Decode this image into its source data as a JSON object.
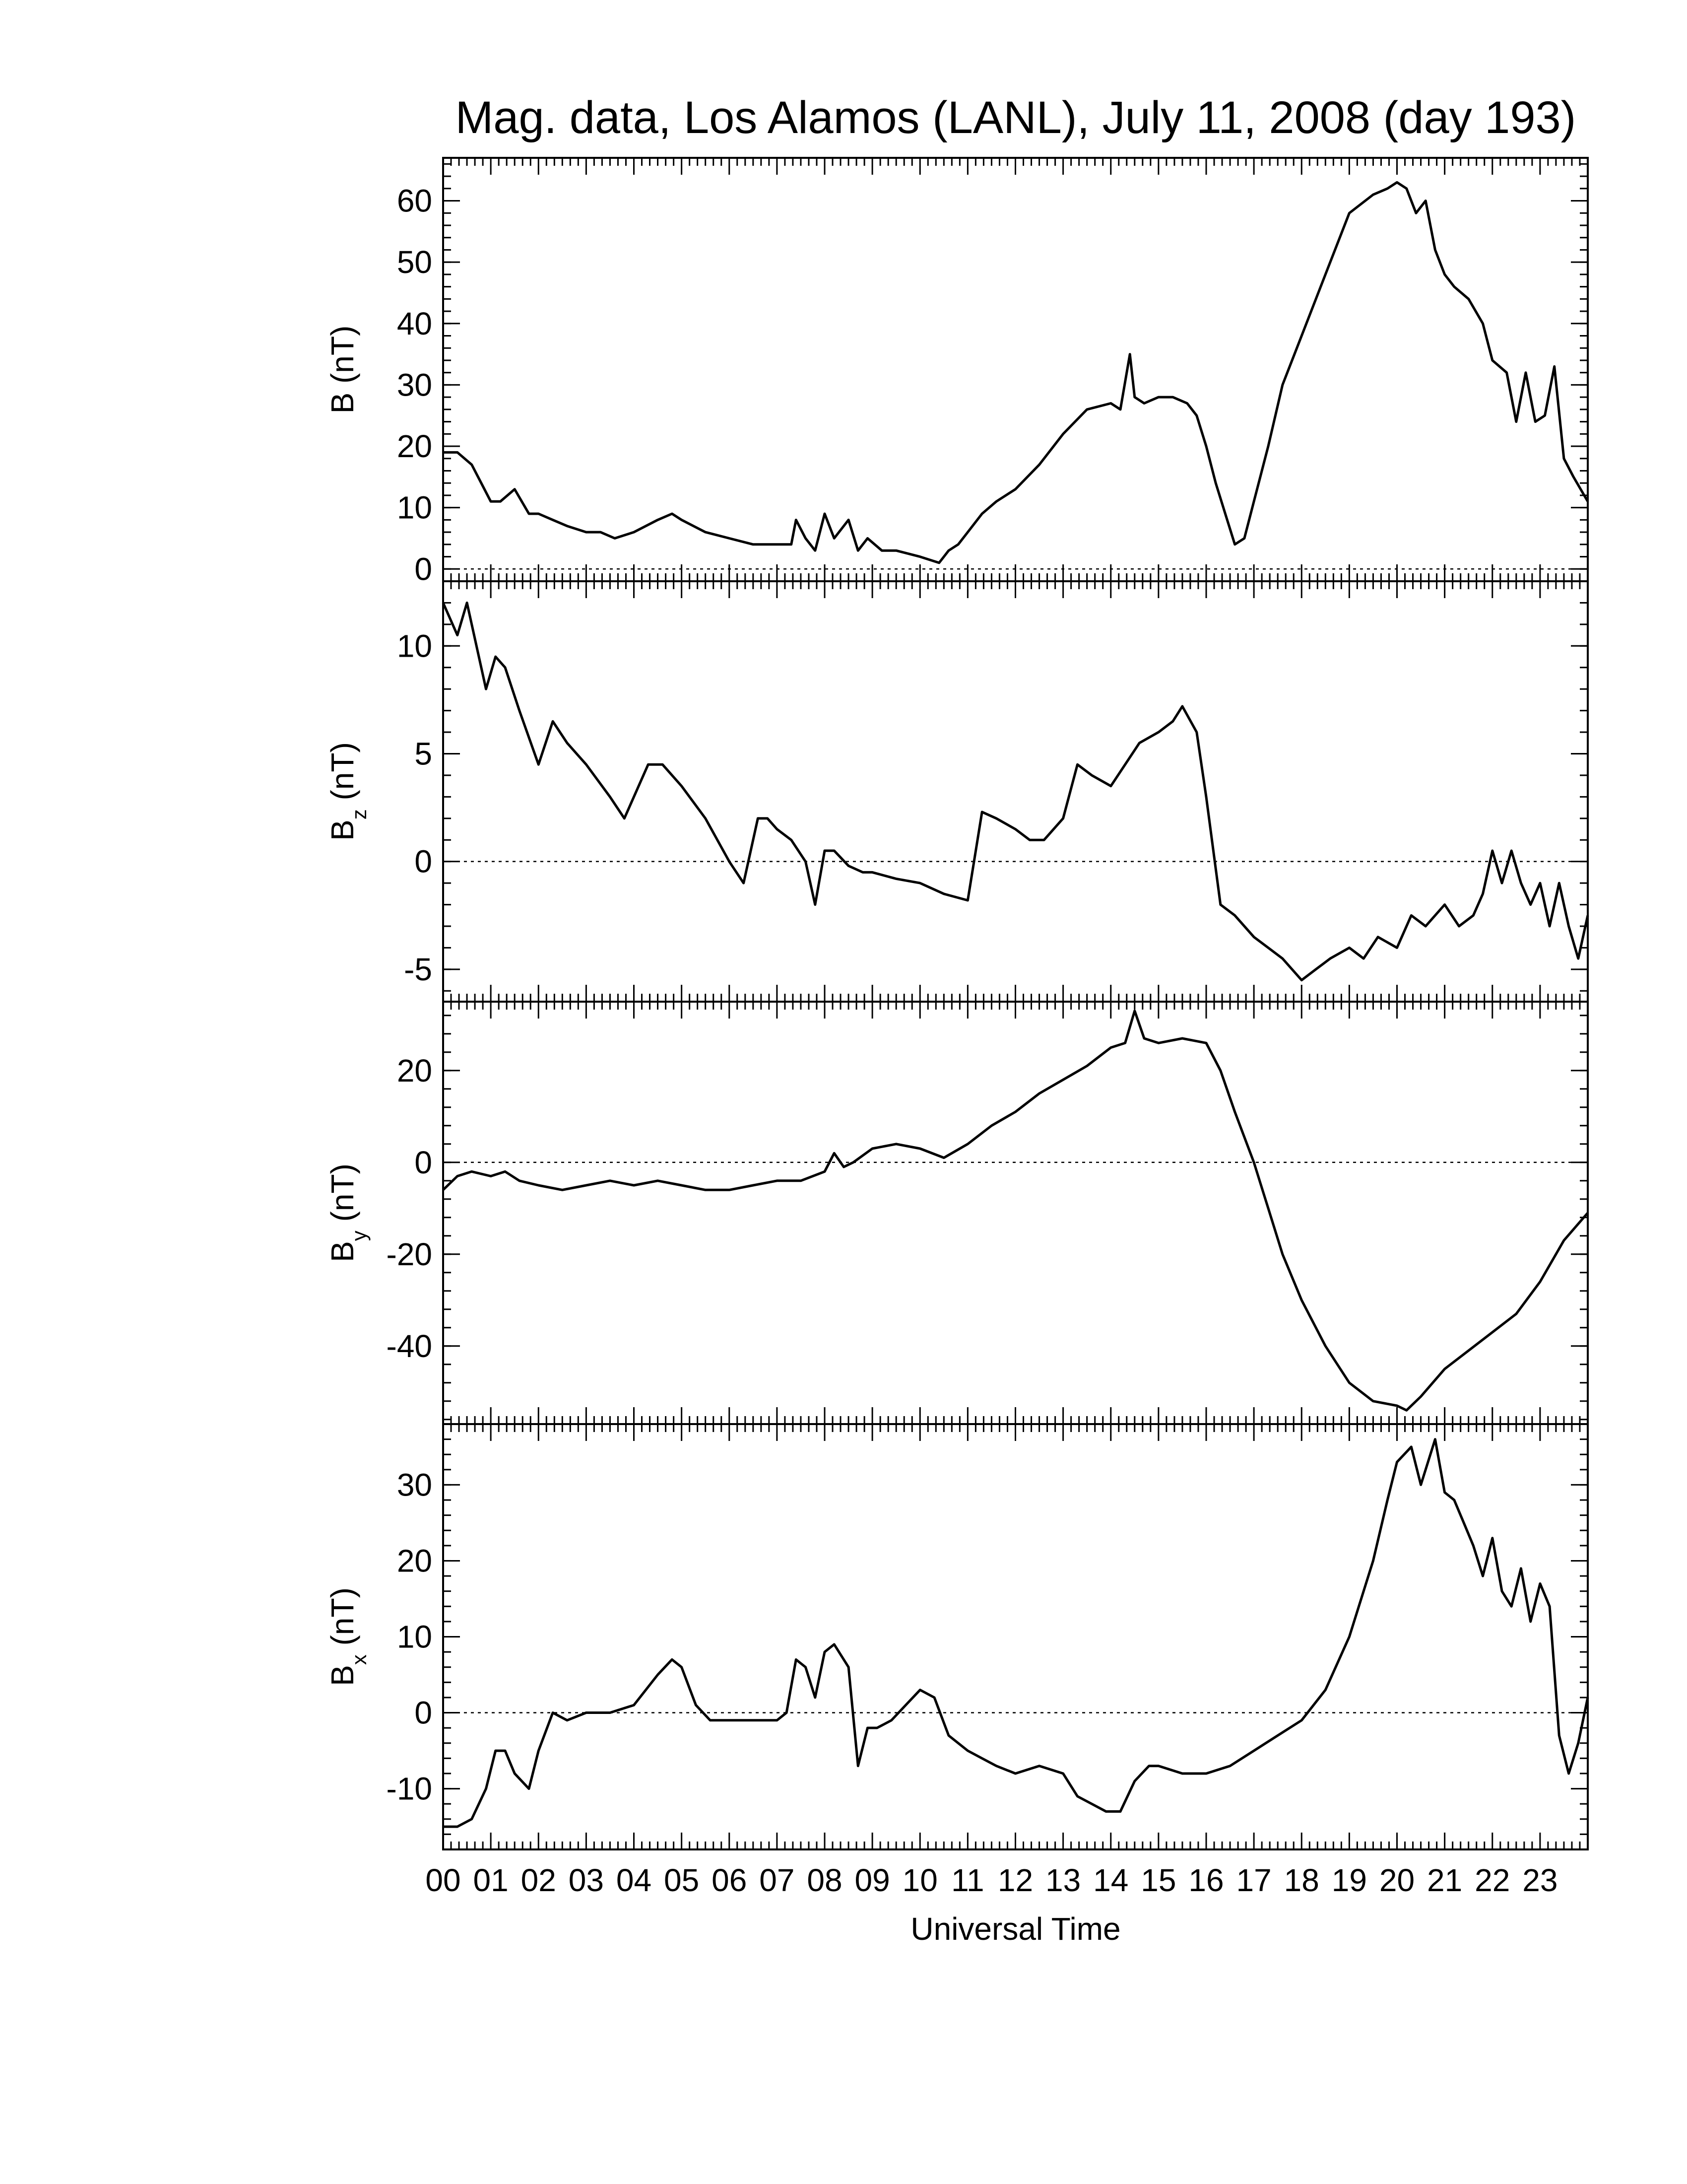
{
  "figure": {
    "title": "Mag. data, Los Alamos (LANL), July 11, 2008 (day 193)",
    "xlabel": "Universal Time",
    "x_tick_labels": [
      "00",
      "01",
      "02",
      "03",
      "04",
      "05",
      "06",
      "07",
      "08",
      "09",
      "10",
      "11",
      "12",
      "13",
      "14",
      "15",
      "16",
      "17",
      "18",
      "19",
      "20",
      "21",
      "22",
      "23"
    ]
  },
  "chart_data": [
    {
      "type": "line",
      "panel": "B",
      "ylabel_main": "B (nT)",
      "ylabel_sub": "",
      "ylabel_tail": "",
      "xlim": [
        0,
        24
      ],
      "ylim": [
        -2,
        67
      ],
      "yticks": [
        0,
        10,
        20,
        30,
        40,
        50,
        60
      ],
      "zero_line": true,
      "x": [
        0,
        0.3,
        0.6,
        0.8,
        1.0,
        1.2,
        1.5,
        1.8,
        2.0,
        2.3,
        2.6,
        3.0,
        3.3,
        3.6,
        4.0,
        4.5,
        4.8,
        5.0,
        5.5,
        6.0,
        6.5,
        7.0,
        7.3,
        7.4,
        7.6,
        7.8,
        8.0,
        8.2,
        8.5,
        8.7,
        8.9,
        9.2,
        9.5,
        10.0,
        10.4,
        10.6,
        10.8,
        11.0,
        11.3,
        11.6,
        12.0,
        12.5,
        13.0,
        13.5,
        14.0,
        14.2,
        14.4,
        14.5,
        14.7,
        15.0,
        15.3,
        15.6,
        15.8,
        16.0,
        16.2,
        16.4,
        16.6,
        16.8,
        17.0,
        17.3,
        17.6,
        18.0,
        18.5,
        19.0,
        19.5,
        19.8,
        20.0,
        20.2,
        20.4,
        20.6,
        20.8,
        21.0,
        21.2,
        21.5,
        21.8,
        22.0,
        22.3,
        22.5,
        22.7,
        22.9,
        23.1,
        23.3,
        23.5,
        23.7,
        24.0
      ],
      "y": [
        19,
        19,
        17,
        14,
        11,
        11,
        13,
        9,
        9,
        8,
        7,
        6,
        6,
        5,
        6,
        8,
        9,
        8,
        6,
        5,
        4,
        4,
        4,
        8,
        5,
        3,
        9,
        5,
        8,
        3,
        5,
        3,
        3,
        2,
        1,
        3,
        4,
        6,
        9,
        11,
        13,
        17,
        22,
        26,
        27,
        26,
        35,
        28,
        27,
        28,
        28,
        27,
        25,
        20,
        14,
        9,
        4,
        5,
        11,
        20,
        30,
        38,
        48,
        58,
        61,
        62,
        63,
        62,
        58,
        60,
        52,
        48,
        46,
        44,
        40,
        34,
        32,
        24,
        32,
        24,
        25,
        33,
        18,
        15,
        11
      ]
    },
    {
      "type": "line",
      "panel": "Bz",
      "ylabel_main": "B",
      "ylabel_sub": "z",
      "ylabel_tail": " (nT)",
      "xlim": [
        0,
        24
      ],
      "ylim": [
        -6.5,
        13
      ],
      "yticks": [
        -5,
        0,
        5,
        10
      ],
      "zero_line": true,
      "x": [
        0,
        0.3,
        0.5,
        0.7,
        0.9,
        1.1,
        1.3,
        1.6,
        2.0,
        2.3,
        2.6,
        3.0,
        3.5,
        3.8,
        4.0,
        4.3,
        4.6,
        5.0,
        5.5,
        6.0,
        6.3,
        6.6,
        6.8,
        7.0,
        7.3,
        7.6,
        7.8,
        8.0,
        8.2,
        8.5,
        8.8,
        9.0,
        9.5,
        10.0,
        10.5,
        11.0,
        11.3,
        11.6,
        12.0,
        12.3,
        12.6,
        13.0,
        13.3,
        13.6,
        14.0,
        14.3,
        14.6,
        15.0,
        15.3,
        15.5,
        15.8,
        16.0,
        16.3,
        16.6,
        17.0,
        17.3,
        17.6,
        18.0,
        18.3,
        18.6,
        19.0,
        19.3,
        19.6,
        20.0,
        20.3,
        20.6,
        21.0,
        21.3,
        21.6,
        21.8,
        22.0,
        22.2,
        22.4,
        22.6,
        22.8,
        23.0,
        23.2,
        23.4,
        23.6,
        23.8,
        24.0
      ],
      "y": [
        12,
        10.5,
        12,
        10,
        8,
        9.5,
        9,
        7,
        4.5,
        6.5,
        5.5,
        4.5,
        3,
        2,
        3,
        4.5,
        4.5,
        3.5,
        2,
        0,
        -1,
        2,
        2,
        1.5,
        1,
        0,
        -2,
        0.5,
        0.5,
        -0.2,
        -0.5,
        -0.5,
        -0.8,
        -1,
        -1.5,
        -1.8,
        2.3,
        2,
        1.5,
        1,
        1,
        2,
        4.5,
        4,
        3.5,
        4.5,
        5.5,
        6,
        6.5,
        7.2,
        6,
        3,
        -2,
        -2.5,
        -3.5,
        -4,
        -4.5,
        -5.5,
        -5,
        -4.5,
        -4,
        -4.5,
        -3.5,
        -4,
        -2.5,
        -3,
        -2,
        -3,
        -2.5,
        -1.5,
        0.5,
        -1,
        0.5,
        -1,
        -2,
        -1,
        -3,
        -1,
        -3,
        -4.5,
        -2.5
      ]
    },
    {
      "type": "line",
      "panel": "By",
      "ylabel_main": "B",
      "ylabel_sub": "y",
      "ylabel_tail": " (nT)",
      "xlim": [
        0,
        24
      ],
      "ylim": [
        -57,
        35
      ],
      "yticks": [
        -40,
        -20,
        0,
        20
      ],
      "zero_line": true,
      "x": [
        0,
        0.3,
        0.6,
        1.0,
        1.3,
        1.6,
        2.0,
        2.5,
        3.0,
        3.5,
        4.0,
        4.5,
        5.0,
        5.5,
        6.0,
        6.5,
        7.0,
        7.5,
        8.0,
        8.2,
        8.4,
        8.6,
        9.0,
        9.5,
        10.0,
        10.5,
        11.0,
        11.5,
        12.0,
        12.5,
        13.0,
        13.5,
        14.0,
        14.3,
        14.5,
        14.7,
        15.0,
        15.5,
        16.0,
        16.3,
        16.6,
        17.0,
        17.3,
        17.6,
        18.0,
        18.5,
        19.0,
        19.5,
        20.0,
        20.2,
        20.5,
        21.0,
        21.5,
        22.0,
        22.5,
        23.0,
        23.5,
        24.0
      ],
      "y": [
        -6,
        -3,
        -2,
        -3,
        -2,
        -4,
        -5,
        -6,
        -5,
        -4,
        -5,
        -4,
        -5,
        -6,
        -6,
        -5,
        -4,
        -4,
        -2,
        2,
        -1,
        0,
        3,
        4,
        3,
        1,
        4,
        8,
        11,
        15,
        18,
        21,
        25,
        26,
        33,
        27,
        26,
        27,
        26,
        20,
        11,
        0,
        -10,
        -20,
        -30,
        -40,
        -48,
        -52,
        -53,
        -54,
        -51,
        -45,
        -41,
        -37,
        -33,
        -26,
        -17,
        -11
      ]
    },
    {
      "type": "line",
      "panel": "Bx",
      "ylabel_main": "B",
      "ylabel_sub": "x",
      "ylabel_tail": " (nT)",
      "xlim": [
        0,
        24
      ],
      "ylim": [
        -18,
        38
      ],
      "yticks": [
        -10,
        0,
        10,
        20,
        30
      ],
      "zero_line": true,
      "x": [
        0,
        0.3,
        0.6,
        0.9,
        1.1,
        1.3,
        1.5,
        1.8,
        2.0,
        2.3,
        2.6,
        3.0,
        3.5,
        4.0,
        4.5,
        4.8,
        5.0,
        5.3,
        5.6,
        6.0,
        6.5,
        7.0,
        7.2,
        7.4,
        7.6,
        7.8,
        8.0,
        8.2,
        8.5,
        8.7,
        8.9,
        9.1,
        9.4,
        9.7,
        10.0,
        10.3,
        10.6,
        11.0,
        11.3,
        11.6,
        12.0,
        12.5,
        13.0,
        13.3,
        13.6,
        13.9,
        14.2,
        14.5,
        14.8,
        15.0,
        15.5,
        16.0,
        16.5,
        17.0,
        17.5,
        18.0,
        18.5,
        19.0,
        19.5,
        19.8,
        20.0,
        20.3,
        20.5,
        20.8,
        21.0,
        21.2,
        21.4,
        21.6,
        21.8,
        22.0,
        22.2,
        22.4,
        22.6,
        22.8,
        23.0,
        23.2,
        23.4,
        23.6,
        23.8,
        24.0
      ],
      "y": [
        -15,
        -15,
        -14,
        -10,
        -5,
        -5,
        -8,
        -10,
        -5,
        0,
        -1,
        0,
        0,
        1,
        5,
        7,
        6,
        1,
        -1,
        -1,
        -1,
        -1,
        0,
        7,
        6,
        2,
        8,
        9,
        6,
        -7,
        -2,
        -2,
        -1,
        1,
        3,
        2,
        -3,
        -5,
        -6,
        -7,
        -8,
        -7,
        -8,
        -11,
        -12,
        -13,
        -13,
        -9,
        -7,
        -7,
        -8,
        -8,
        -7,
        -5,
        -3,
        -1,
        3,
        10,
        20,
        28,
        33,
        35,
        30,
        36,
        29,
        28,
        25,
        22,
        18,
        23,
        16,
        14,
        19,
        12,
        17,
        14,
        -3,
        -8,
        -4,
        2
      ]
    }
  ]
}
